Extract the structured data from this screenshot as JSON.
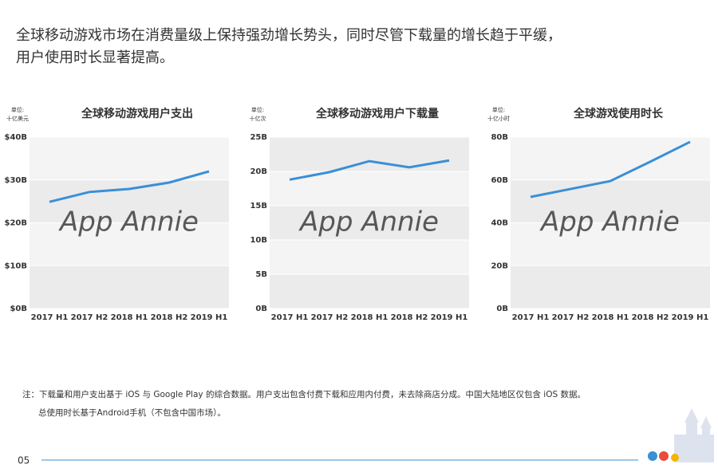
{
  "headline": [
    "全球移动游戏市场在消费量级上保持强劲增长势头，同时尽管下载量的增长趋于平缓，",
    "用户使用时长显著提高。"
  ],
  "watermark": "App Annie",
  "chart_data": [
    {
      "type": "line",
      "title": "全球移动游戏用户支出",
      "unit_label": [
        "单位:",
        "十亿美元"
      ],
      "categories": [
        "2017 H1",
        "2017 H2",
        "2018 H1",
        "2018 H2",
        "2019 H1"
      ],
      "values": [
        24.9,
        27.2,
        27.9,
        29.4,
        32.0
      ],
      "color": "#3a8fd6",
      "ylim": [
        0,
        40
      ],
      "yticks": [
        {
          "value": 0,
          "label": "$0B"
        },
        {
          "value": 10,
          "label": "$10B"
        },
        {
          "value": 20,
          "label": "$20B"
        },
        {
          "value": 30,
          "label": "$30B"
        },
        {
          "value": 40,
          "label": "$40B"
        }
      ]
    },
    {
      "type": "line",
      "title": "全球移动游戏用户下载量",
      "unit_label": [
        "单位:",
        "十亿次"
      ],
      "categories": [
        "2017 H1",
        "2017 H2",
        "2018 H1",
        "2018 H2",
        "2019 H1"
      ],
      "values": [
        18.8,
        19.9,
        21.5,
        20.6,
        21.6
      ],
      "color": "#3a8fd6",
      "ylim": [
        0,
        25
      ],
      "yticks": [
        {
          "value": 0,
          "label": "0B"
        },
        {
          "value": 5,
          "label": "5B"
        },
        {
          "value": 10,
          "label": "10B"
        },
        {
          "value": 15,
          "label": "15B"
        },
        {
          "value": 20,
          "label": "20B"
        },
        {
          "value": 25,
          "label": "25B"
        }
      ]
    },
    {
      "type": "line",
      "title": "全球游戏使用时长",
      "unit_label": [
        "单位:",
        "十亿小时"
      ],
      "categories": [
        "2017 H1",
        "2017 H2",
        "2018 H1",
        "2018 H2",
        "2019 H1"
      ],
      "values": [
        52.1,
        55.8,
        59.5,
        68.5,
        77.8
      ],
      "color": "#3a8fd6",
      "ylim": [
        0,
        80
      ],
      "yticks": [
        {
          "value": 0,
          "label": "0B"
        },
        {
          "value": 20,
          "label": "20B"
        },
        {
          "value": 40,
          "label": "40B"
        },
        {
          "value": 60,
          "label": "60B"
        },
        {
          "value": 80,
          "label": "80B"
        }
      ]
    }
  ],
  "notes": [
    "注：下载量和用户支出基于 iOS 与 Google Play 的综合数据。用户支出包含付费下载和应用内付费，未去除商店分成。中国大陆地区仅包含 iOS 数据。",
    "总使用时长基于Android手机（不包含中国市场）。"
  ],
  "page_number": "05"
}
